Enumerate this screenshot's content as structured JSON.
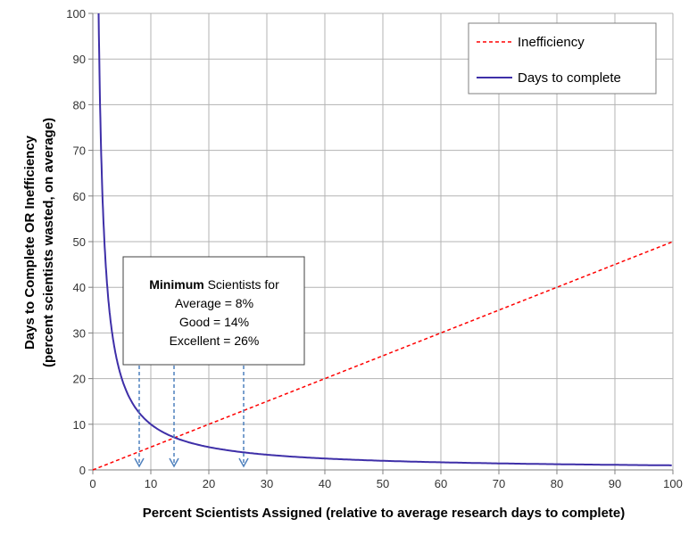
{
  "chart_data": {
    "type": "line",
    "xlabel": "Percent Scientists Assigned (relative to average research days to complete)",
    "ylabel_line1": "Days to Complete  OR  Inefficiency",
    "ylabel_line2": "(percent scientists wasted, on average)",
    "xlim": [
      0,
      100
    ],
    "ylim": [
      0,
      100
    ],
    "x_ticks": [
      0,
      10,
      20,
      30,
      40,
      50,
      60,
      70,
      80,
      90,
      100
    ],
    "y_ticks": [
      0,
      10,
      20,
      30,
      40,
      50,
      60,
      70,
      80,
      90,
      100
    ],
    "grid": true,
    "legend_position": "top-right",
    "series": [
      {
        "name": "Inefficiency",
        "style": "dashed",
        "color": "#ff0000",
        "x": [
          0,
          100
        ],
        "y": [
          0,
          50
        ]
      },
      {
        "name": "Days to complete",
        "style": "solid",
        "color": "#3e2fa8",
        "x": [
          1,
          1.5,
          2,
          3,
          4,
          5,
          6,
          7,
          8,
          10,
          12,
          14,
          16,
          20,
          25,
          30,
          40,
          50,
          60,
          70,
          80,
          90,
          100
        ],
        "y": [
          100,
          66.7,
          50,
          33.3,
          25,
          20,
          16.7,
          14.3,
          12.5,
          10,
          8.3,
          7.1,
          6.3,
          5,
          4,
          3.3,
          2.5,
          2,
          1.7,
          1.4,
          1.25,
          1.1,
          1
        ]
      }
    ],
    "annotation": {
      "bold_word": "Minimum",
      "line1_rest": " Scientists for",
      "line2": "Average = 8%",
      "line3": "Good = 14%",
      "line4": "Excellent = 26%",
      "arrow_x": [
        8,
        14,
        26
      ],
      "arrow_color": "#4f81bd"
    },
    "colors": {
      "grid": "#b3b3b3",
      "axis": "#808080"
    }
  }
}
